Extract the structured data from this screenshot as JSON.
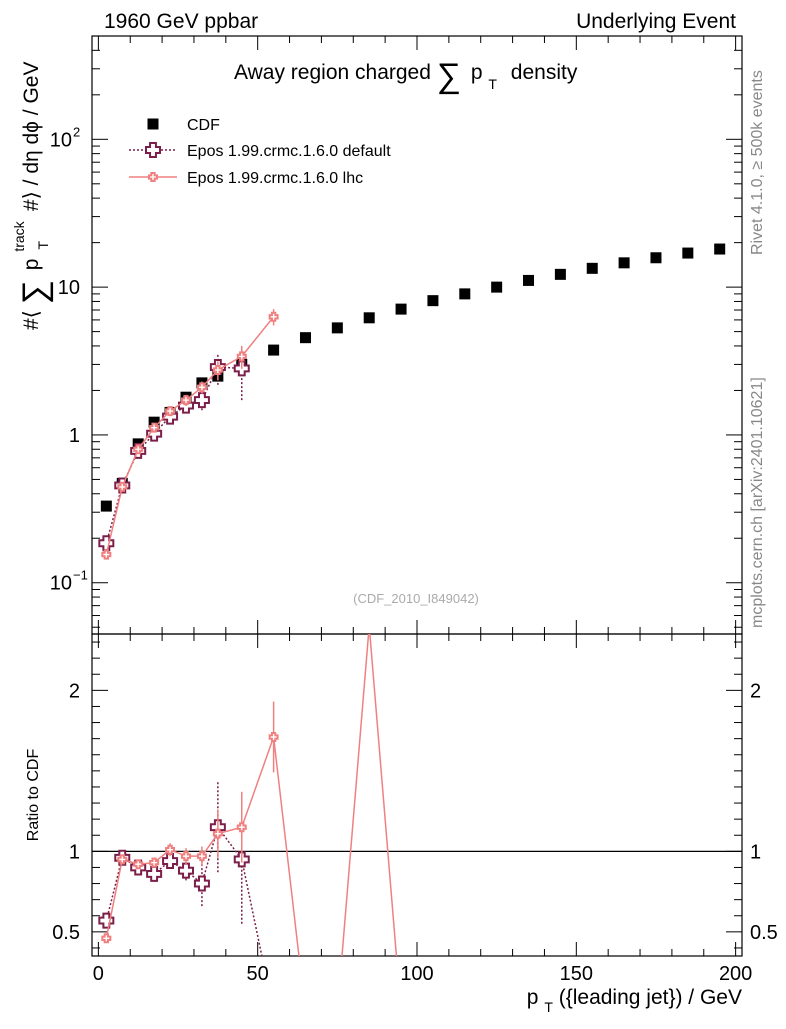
{
  "header": {
    "left": "1960 GeV ppbar",
    "right": "Underlying Event"
  },
  "side_text": {
    "rivet": "Rivet 4.1.0, ≥ 500k events",
    "mcplots": "mcplots.cern.ch [arXiv:2401.10621]"
  },
  "chart_data": [
    {
      "type": "scatter",
      "panel": "main",
      "title": "Away region charged ∑ pT density",
      "ylabel": "#⟨ ∑ pT^track #⟩ / dη dϕ / GeV",
      "xlabel": "",
      "yscale": "log",
      "ylim": [
        0.045,
        500
      ],
      "xlim": [
        -2,
        202
      ],
      "yticks": [
        {
          "value": 0.1,
          "label": "10",
          "exp": "−1"
        },
        {
          "value": 1,
          "label": "1",
          "exp": ""
        },
        {
          "value": 10,
          "label": "10",
          "exp": ""
        },
        {
          "value": 100,
          "label": "10",
          "exp": "2"
        }
      ],
      "watermark": "(CDF_2010_I849042)",
      "legend": [
        "CDF",
        "Epos 1.99.crmc.1.6.0 default",
        "Epos 1.99.crmc.1.6.0 lhc"
      ],
      "series": [
        {
          "name": "CDF",
          "color": "#000000",
          "x": [
            2.5,
            7.5,
            12.5,
            17.5,
            22.5,
            27.5,
            32.5,
            37.5,
            45,
            55,
            65,
            75,
            85,
            95,
            105,
            115,
            125,
            135,
            145,
            155,
            165,
            175,
            185,
            195
          ],
          "y": [
            0.33,
            0.47,
            0.87,
            1.22,
            1.42,
            1.8,
            2.25,
            2.5,
            3.0,
            3.75,
            4.55,
            5.3,
            6.2,
            7.1,
            8.1,
            9.0,
            10.0,
            11.1,
            12.2,
            13.4,
            14.6,
            15.8,
            17.0,
            18.1
          ]
        },
        {
          "name": "Epos 1.99.crmc.1.6.0 default",
          "color": "#7b1f4a",
          "x": [
            2.5,
            7.5,
            12.5,
            17.5,
            22.5,
            27.5,
            32.5,
            37.5,
            45
          ],
          "y": [
            0.185,
            0.455,
            0.78,
            1.02,
            1.33,
            1.58,
            1.72,
            2.88,
            2.82
          ],
          "yerr": [
            0.01,
            0.02,
            0.04,
            0.06,
            0.1,
            0.15,
            0.25,
            0.7,
            1.1
          ]
        },
        {
          "name": "Epos 1.99.crmc.1.6.0 lhc",
          "color": "#f08080",
          "x": [
            2.5,
            7.5,
            12.5,
            17.5,
            22.5,
            27.5,
            32.5,
            37.5,
            45,
            55
          ],
          "y": [
            0.155,
            0.445,
            0.8,
            1.12,
            1.45,
            1.72,
            2.1,
            2.75,
            3.4,
            6.3
          ],
          "yerr": [
            0.01,
            0.02,
            0.04,
            0.06,
            0.1,
            0.15,
            0.2,
            0.4,
            0.6,
            0.8
          ]
        }
      ]
    },
    {
      "type": "line",
      "panel": "ratio",
      "ylabel": "Ratio to CDF",
      "xlabel": "pT({leading jet}) / GeV",
      "ylim": [
        0.35,
        2.35
      ],
      "xlim": [
        -2,
        202
      ],
      "yticks": [
        0.5,
        1,
        2
      ],
      "xticks": [
        0,
        50,
        100,
        150,
        200
      ],
      "reference_line": 1,
      "series": [
        {
          "name": "Epos 1.99.crmc.1.6.0 default",
          "color": "#7b1f4a",
          "x": [
            2.5,
            7.5,
            12.5,
            17.5,
            22.5,
            27.5,
            32.5,
            37.5,
            45,
            55
          ],
          "y": [
            0.57,
            0.96,
            0.9,
            0.86,
            0.94,
            0.88,
            0.8,
            1.15,
            0.95,
            0.0
          ],
          "yerr": [
            0.02,
            0.03,
            0.04,
            0.04,
            0.05,
            0.06,
            0.14,
            0.28,
            0.4,
            0.0
          ]
        },
        {
          "name": "Epos 1.99.crmc.1.6.0 lhc",
          "color": "#f08080",
          "x": [
            2.5,
            7.5,
            12.5,
            17.5,
            22.5,
            27.5,
            32.5,
            37.5,
            45,
            55,
            65,
            75,
            85,
            95
          ],
          "y": [
            0.46,
            0.95,
            0.92,
            0.93,
            1.01,
            0.97,
            0.97,
            1.11,
            1.15,
            1.71,
            0.0,
            0.0,
            2.4,
            0.0
          ],
          "yerr": [
            0.01,
            0.03,
            0.03,
            0.03,
            0.04,
            0.05,
            0.06,
            0.15,
            0.22,
            0.22,
            0,
            0,
            0,
            0
          ]
        }
      ]
    }
  ]
}
